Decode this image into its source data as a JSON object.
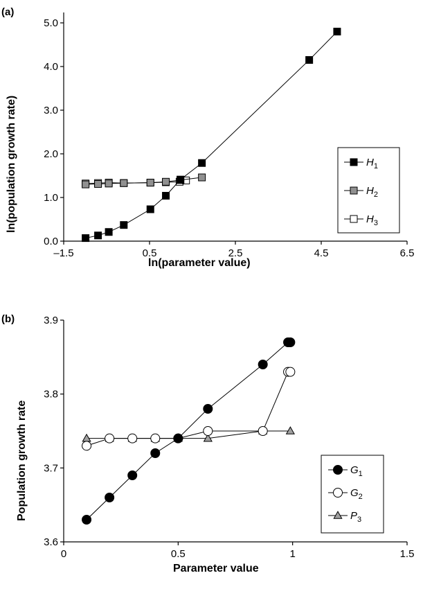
{
  "chart_data": [
    {
      "panel_label": "(a)",
      "type": "line",
      "xlabel": "ln(parameter value)",
      "ylabel": "ln(population growth rate)",
      "xlim": [
        -1.5,
        6.5
      ],
      "ylim": [
        0.0,
        5.0
      ],
      "xticks": [
        -1.5,
        0.5,
        2.5,
        4.5,
        6.5
      ],
      "xtick_labels": [
        "–1.5",
        "0.5",
        "2.5",
        "4.5",
        "6.5"
      ],
      "yticks": [
        0.0,
        1.0,
        2.0,
        3.0,
        4.0,
        5.0
      ],
      "ytick_labels": [
        "0.0",
        "1.0",
        "2.0",
        "3.0",
        "4.0",
        "5.0"
      ],
      "grid": false,
      "legend_position": "right",
      "series": [
        {
          "name": "H",
          "sub": "1",
          "marker": "square",
          "fill": "#000000",
          "x": [
            -0.99,
            -0.7,
            -0.45,
            -0.1,
            0.52,
            0.88,
            1.22,
            1.72,
            4.22,
            4.87
          ],
          "y": [
            0.07,
            0.13,
            0.21,
            0.37,
            0.73,
            1.04,
            1.41,
            1.79,
            4.15,
            4.8
          ]
        },
        {
          "name": "H",
          "sub": "2",
          "marker": "square",
          "fill": "#909090",
          "x": [
            -0.99,
            -0.7,
            -0.45,
            -0.1,
            0.52,
            0.88,
            1.22,
            1.72
          ],
          "y": [
            1.3,
            1.31,
            1.32,
            1.33,
            1.34,
            1.36,
            1.4,
            1.46
          ]
        },
        {
          "name": "H",
          "sub": "3",
          "marker": "square",
          "fill": "#ffffff",
          "x": [
            -0.99,
            -0.7,
            -0.45,
            -0.1,
            0.52,
            0.88,
            1.2,
            1.35
          ],
          "y": [
            1.32,
            1.33,
            1.34,
            1.33,
            1.34,
            1.35,
            1.36,
            1.39
          ]
        }
      ]
    },
    {
      "panel_label": "(b)",
      "type": "line",
      "xlabel": "Parameter value",
      "ylabel": "Population growth rate",
      "xlim": [
        0,
        1.5
      ],
      "ylim": [
        3.6,
        3.9
      ],
      "xticks": [
        0,
        0.5,
        1,
        1.5
      ],
      "xtick_labels": [
        "0",
        "0.5",
        "1",
        "1.5"
      ],
      "yticks": [
        3.6,
        3.7,
        3.8,
        3.9
      ],
      "ytick_labels": [
        "3.6",
        "3.7",
        "3.8",
        "3.9"
      ],
      "grid": false,
      "legend_position": "bottom-right",
      "series": [
        {
          "name": "G",
          "sub": "1",
          "marker": "circle",
          "fill": "#000000",
          "x": [
            0.1,
            0.2,
            0.3,
            0.4,
            0.5,
            0.63,
            0.87,
            0.98,
            0.99
          ],
          "y": [
            3.63,
            3.66,
            3.69,
            3.72,
            3.74,
            3.78,
            3.84,
            3.87,
            3.87
          ]
        },
        {
          "name": "G",
          "sub": "2",
          "marker": "circle",
          "fill": "#ffffff",
          "x": [
            0.1,
            0.2,
            0.3,
            0.4,
            0.5,
            0.63,
            0.87,
            0.98,
            0.99
          ],
          "y": [
            3.73,
            3.74,
            3.74,
            3.74,
            3.74,
            3.75,
            3.75,
            3.83,
            3.83
          ]
        },
        {
          "name": "P",
          "sub": "3",
          "marker": "triangle",
          "fill": "#a0a0a0",
          "x": [
            0.1,
            0.2,
            0.3,
            0.4,
            0.5,
            0.63,
            0.87,
            0.99
          ],
          "y": [
            3.74,
            3.74,
            3.74,
            3.74,
            3.74,
            3.74,
            3.75,
            3.75
          ]
        }
      ]
    }
  ]
}
